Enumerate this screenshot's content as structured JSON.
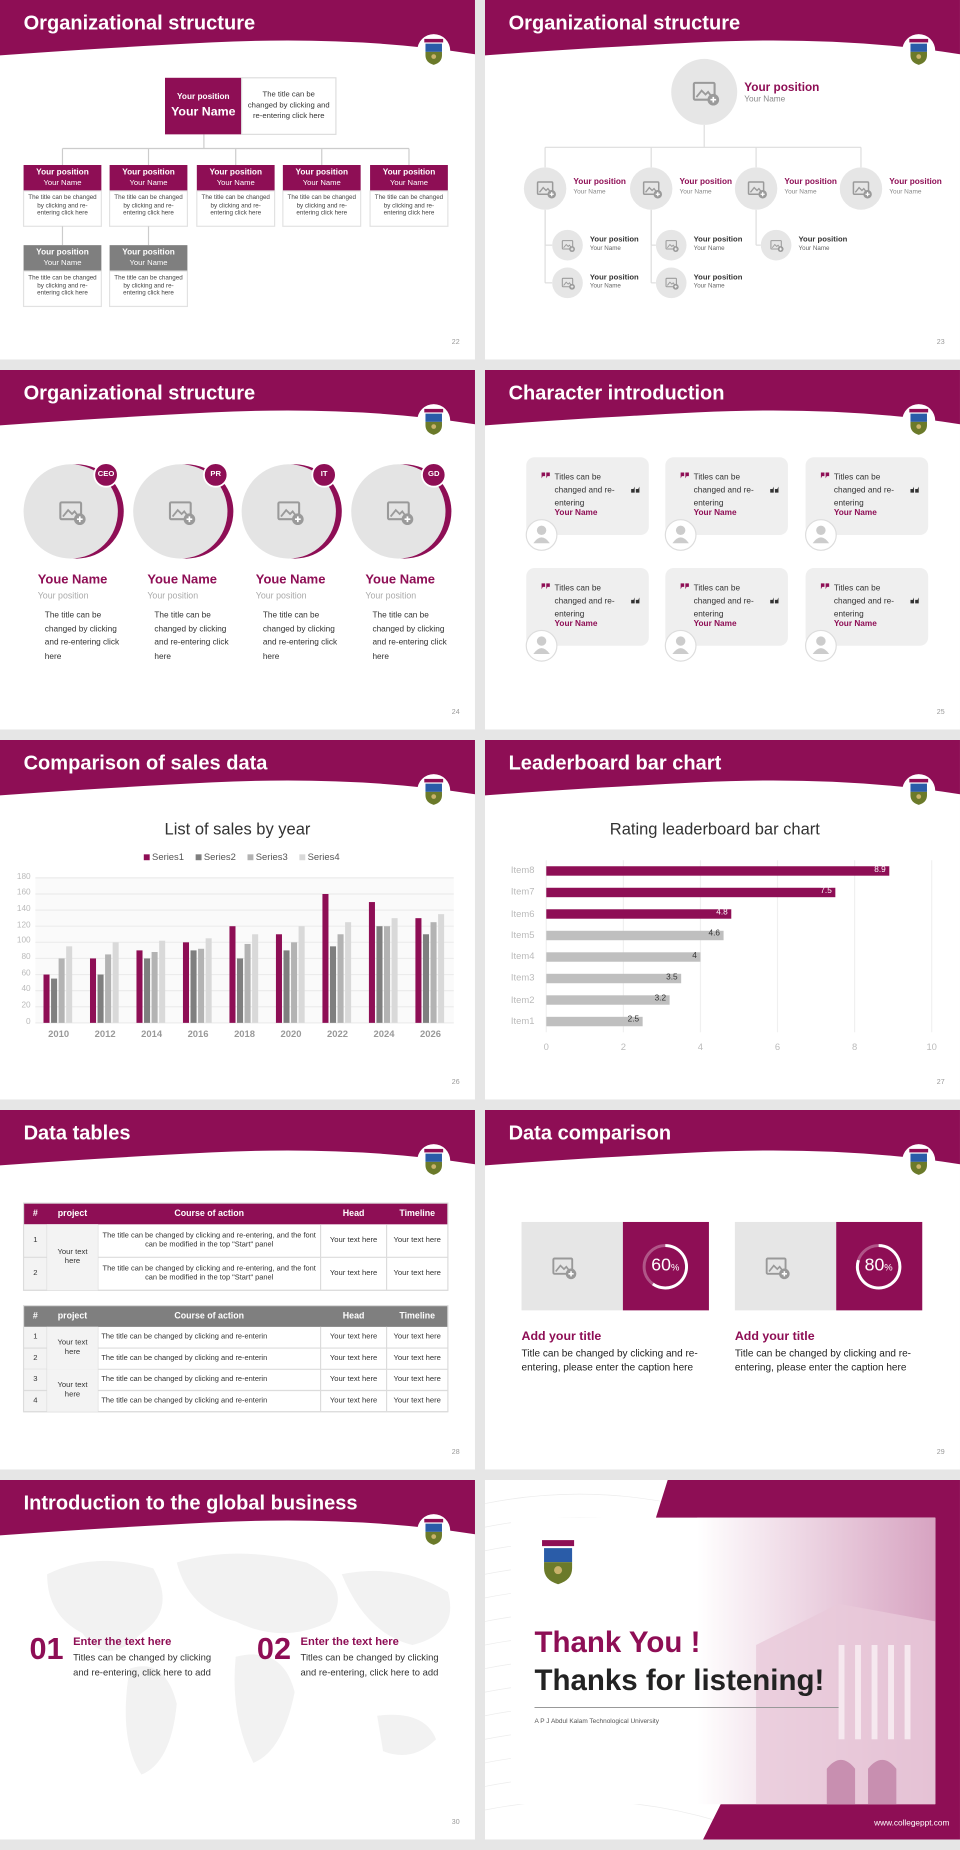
{
  "slides": [
    {
      "title": "Organizational structure",
      "page": 22,
      "head": {
        "position": "Your position",
        "name": "Your Name",
        "text": "The title can be changed by clicking and re-entering click here"
      },
      "members": [
        {
          "position": "Your position",
          "name": "Your Name",
          "text": "The title can be changed by clicking and re-entering click here"
        },
        {
          "position": "Your position",
          "name": "Your Name",
          "text": "The title can be changed by clicking and re-entering click here"
        },
        {
          "position": "Your position",
          "name": "Your Name",
          "text": "The title can be changed by clicking and re-entering click here"
        },
        {
          "position": "Your position",
          "name": "Your Name",
          "text": "The title can be changed by clicking and re-entering click here"
        },
        {
          "position": "Your position",
          "name": "Your Name",
          "text": "The title can be changed by clicking and re-entering click here"
        },
        {
          "position": "Your position",
          "name": "Your Name",
          "text": "The title can be changed by clicking and re-entering click here"
        },
        {
          "position": "Your position",
          "name": "Your Name",
          "text": "The title can be changed by clicking and re-entering click here"
        }
      ]
    },
    {
      "title": "Organizational structure",
      "page": 23,
      "head": {
        "position": "Your position",
        "name": "Your Name"
      },
      "level2": [
        {
          "position": "Your position",
          "name": "Your Name"
        },
        {
          "position": "Your position",
          "name": "Your Name"
        },
        {
          "position": "Your position",
          "name": "Your Name"
        },
        {
          "position": "Your position",
          "name": "Your Name"
        }
      ],
      "level3": [
        {
          "position": "Your position",
          "name": "Your Name"
        },
        {
          "position": "Your position",
          "name": "Your Name"
        },
        {
          "position": "Your position",
          "name": "Your Name"
        },
        {
          "position": "Your position",
          "name": "Your Name"
        },
        {
          "position": "Your position",
          "name": "Your Name"
        }
      ]
    },
    {
      "title": "Organizational structure",
      "page": 24,
      "people": [
        {
          "badge": "CEO",
          "name": "Youe Name",
          "position": "Your position",
          "text": "The title can be changed by clicking and re-entering click here"
        },
        {
          "badge": "PR",
          "name": "Youe Name",
          "position": "Your position",
          "text": "The title can be changed by clicking and re-entering click here"
        },
        {
          "badge": "IT",
          "name": "Youe Name",
          "position": "Your position",
          "text": "The title can be changed by clicking and re-entering click here"
        },
        {
          "badge": "GD",
          "name": "Youe Name",
          "position": "Your position",
          "text": "The title can be changed by clicking and re-entering click here"
        }
      ]
    },
    {
      "title": "Character introduction",
      "page": 25,
      "cards": [
        {
          "quote": "Titles can be changed and re-entering",
          "name": "Your Name"
        },
        {
          "quote": "Titles can be changed and re-entering",
          "name": "Your Name"
        },
        {
          "quote": "Titles can be changed and re-entering",
          "name": "Your Name"
        },
        {
          "quote": "Titles can be changed and re-entering",
          "name": "Your Name"
        },
        {
          "quote": "Titles can be changed and re-entering",
          "name": "Your Name"
        },
        {
          "quote": "Titles can be changed and re-entering",
          "name": "Your Name"
        }
      ]
    },
    {
      "title": "Comparison of sales data",
      "page": 26
    },
    {
      "title": "Leaderboard bar chart",
      "page": 27
    },
    {
      "title": "Data tables",
      "page": 28,
      "tables": [
        {
          "header": [
            "#",
            "project",
            "Course of action",
            "Head",
            "Timeline"
          ],
          "groups": [
            {
              "project": "Your text here",
              "rows": [
                [
                  1,
                  "The title can be changed by clicking and re-entering, and the font can be modified in the top \"Start\" panel",
                  "Your text here",
                  "Your text here"
                ],
                [
                  2,
                  "The title can be changed by clicking and re-entering, and the font can be modified in the top \"Start\" panel",
                  "Your text here",
                  "Your text here"
                ]
              ]
            }
          ]
        },
        {
          "header": [
            "#",
            "project",
            "Course of action",
            "Head",
            "Timeline"
          ],
          "groups": [
            {
              "project": "Your text here",
              "rows": [
                [
                  1,
                  "The title can be changed by clicking and re-enterin",
                  "Your text here",
                  "Your text here"
                ],
                [
                  2,
                  "The title can be changed by clicking and re-enterin",
                  "Your text here",
                  "Your text here"
                ]
              ]
            },
            {
              "project": "Your text here",
              "rows": [
                [
                  3,
                  "The title can be changed by clicking and re-enterin",
                  "Your text here",
                  "Your text here"
                ],
                [
                  4,
                  "The title can be changed by clicking and re-enterin",
                  "Your text here",
                  "Your text here"
                ]
              ]
            }
          ]
        }
      ]
    },
    {
      "title": "Data comparison",
      "page": 29,
      "items": [
        {
          "value": 60,
          "unit": "%",
          "title": "Add your title",
          "text": "Title can be changed by clicking and re-entering, please enter the caption here"
        },
        {
          "value": 80,
          "unit": "%",
          "title": "Add your title",
          "text": "Title can be changed by clicking and re-entering, please enter the caption here"
        }
      ]
    },
    {
      "title": "Introduction to the global business",
      "page": 30,
      "items": [
        {
          "number": "01",
          "title": "Enter the text here",
          "text": "Titles can be changed by clicking and re-entering, click here to add"
        },
        {
          "number": "02",
          "title": "Enter the text here",
          "text": "Titles can be changed by clicking and re-entering, click here to add"
        }
      ]
    },
    {
      "title": "Thank You !",
      "subtitle": "Thanks for listening!",
      "university": "A P J Abdul Kalam Technological University",
      "website": "www.collegeppt.com"
    }
  ],
  "chart_data": [
    {
      "type": "bar",
      "title": "List of sales by year",
      "categories": [
        "2010",
        "2012",
        "2014",
        "2016",
        "2018",
        "2020",
        "2022",
        "2024",
        "2026"
      ],
      "series": [
        {
          "name": "Series1",
          "color": "#8e0e55",
          "values": [
            60,
            80,
            90,
            100,
            120,
            110,
            160,
            150,
            130
          ]
        },
        {
          "name": "Series2",
          "color": "#7f7f7f",
          "values": [
            55,
            60,
            80,
            90,
            80,
            90,
            95,
            120,
            110
          ]
        },
        {
          "name": "Series3",
          "color": "#b3b3b3",
          "values": [
            80,
            85,
            88,
            92,
            98,
            100,
            110,
            120,
            125
          ]
        },
        {
          "name": "Series4",
          "color": "#d9d9d9",
          "values": [
            95,
            100,
            102,
            105,
            110,
            120,
            125,
            130,
            135
          ]
        }
      ],
      "ylim": [
        0,
        180
      ],
      "yticks": [
        0,
        20,
        40,
        60,
        80,
        100,
        120,
        140,
        160,
        180
      ],
      "grid": true,
      "legend": "top"
    },
    {
      "type": "barh",
      "title": "Rating leaderboard bar chart",
      "categories": [
        "Item1",
        "Item2",
        "Item3",
        "Item4",
        "Item5",
        "Item6",
        "Item7",
        "Item8"
      ],
      "values": [
        2.5,
        3.2,
        3.5,
        4,
        4.6,
        4.8,
        7.5,
        8.9
      ],
      "colors": [
        "#bfbfbf",
        "#bfbfbf",
        "#bfbfbf",
        "#bfbfbf",
        "#bfbfbf",
        "#8e0e55",
        "#8e0e55",
        "#8e0e55"
      ],
      "xlim": [
        0,
        10
      ],
      "xticks": [
        0,
        2,
        4,
        6,
        8,
        10
      ],
      "grid": true
    }
  ]
}
